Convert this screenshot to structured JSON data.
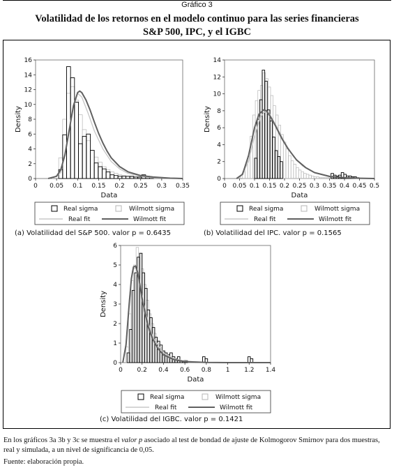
{
  "header": {
    "graphic_label": "Gráfico 3",
    "title_line1": "Volatilidad de los retornos en el modelo continuo para las series financieras",
    "title_line2": "S&P 500, IPC, y el IGBC"
  },
  "footnote": {
    "text_before": "En los gráficos 3a 3b y 3c se muestra el ",
    "italic": "valor p",
    "text_after": " asociado al test de bondad de ajuste de Kolmogorov Smirnov para dos muestras, real y simulada, a un nivel de significancia de 0,05."
  },
  "source": "Fuente: elaboración propia.",
  "colors": {
    "real": "#000000",
    "wilmott_hist": "#b5b5b5",
    "real_fit": "#c8c8c8",
    "wilmott_fit": "#606060"
  },
  "chart_data": [
    {
      "type": "histogram",
      "caption": "(a)    Volatilidad del S&P 500. valor p = 0.6435",
      "xlabel": "Data",
      "ylabel": "Density",
      "xlim": [
        0,
        0.35
      ],
      "ylim": [
        0,
        16
      ],
      "xticks": [
        "0",
        "0.05",
        "0.1",
        "0.15",
        "0.2",
        "0.25",
        "0.3",
        "0.35"
      ],
      "yticks": [
        "0",
        "2",
        "4",
        "6",
        "8",
        "10",
        "12",
        "14",
        "16"
      ],
      "legend": [
        "Real sigma",
        "Wilmott sigma",
        "Real fit",
        "Wilmott fit"
      ],
      "series": [
        {
          "name": "Real sigma",
          "bin_start": 0.055,
          "bin_width": 0.0094,
          "values": [
            1.2,
            5.9,
            15.1,
            13.6,
            10.3,
            4.7,
            5.7,
            6.0,
            3.8,
            2.1,
            1.6,
            1.3,
            0.9,
            0.5,
            0.4,
            0.3,
            0.3,
            0.3,
            0.3,
            0.2,
            0.2,
            0.5,
            0.3,
            0.2,
            0,
            0
          ]
        },
        {
          "name": "Wilmott sigma",
          "bin_start": 0.055,
          "bin_width": 0.0094,
          "values": [
            2.8,
            8.0,
            11.5,
            12.4,
            10.6,
            8.6,
            6.6,
            5.1,
            3.8,
            2.9,
            2.2,
            1.6,
            1.2,
            0.9,
            0.7,
            0.5,
            0.4,
            0.3,
            0.2,
            0.2,
            0.1,
            0.1,
            0.1,
            0.1,
            0,
            0
          ]
        },
        {
          "name": "Real fit",
          "x": [
            0.04,
            0.06,
            0.075,
            0.09,
            0.1,
            0.11,
            0.125,
            0.14,
            0.16,
            0.18,
            0.2,
            0.22,
            0.25,
            0.28,
            0.32,
            0.35
          ],
          "values": [
            0,
            0.8,
            5.0,
            10.0,
            11.5,
            11.0,
            8.8,
            6.4,
            4.0,
            2.3,
            1.3,
            0.7,
            0.3,
            0.1,
            0.05,
            0
          ]
        },
        {
          "name": "Wilmott fit",
          "x": [
            0.03,
            0.05,
            0.06,
            0.07,
            0.08,
            0.09,
            0.1,
            0.105,
            0.11,
            0.12,
            0.13,
            0.14,
            0.15,
            0.16,
            0.17,
            0.18,
            0.2,
            0.22,
            0.25,
            0.28,
            0.32,
            0.35
          ],
          "values": [
            0,
            0.3,
            1.2,
            3.2,
            6.5,
            9.8,
            11.6,
            11.8,
            11.6,
            10.6,
            9.2,
            7.6,
            6.1,
            4.8,
            3.7,
            2.8,
            1.6,
            0.9,
            0.4,
            0.2,
            0.05,
            0
          ]
        }
      ]
    },
    {
      "type": "histogram",
      "caption": "(b) Volatilidad del IPC. valor p = 0.1565",
      "xlabel": "Data",
      "ylabel": "Density",
      "xlim": [
        0,
        0.5
      ],
      "ylim": [
        0,
        14
      ],
      "xticks": [
        "0",
        "0.05",
        "0.1",
        "0.15",
        "0.2",
        "0.25",
        "0.3",
        "0.35",
        "0.4",
        "0.45",
        "0.5"
      ],
      "yticks": [
        "0",
        "2",
        "4",
        "6",
        "8",
        "10",
        "12",
        "14"
      ],
      "legend": [
        "Real sigma",
        "Wilmott sigma",
        "Real fit",
        "Wilmott fit"
      ],
      "series": [
        {
          "name": "Real sigma",
          "bin_start": 0.1,
          "bin_width": 0.0085,
          "values": [
            2.4,
            7.0,
            9.3,
            12.8,
            11.5,
            8.1,
            6.8,
            4.9,
            3.3,
            2.6,
            2.0,
            0,
            0,
            0,
            0,
            0,
            0,
            0,
            0,
            0,
            0,
            0,
            0,
            0,
            0,
            0,
            0,
            0,
            0,
            0,
            0.6,
            0.4,
            0.3,
            0.4,
            0.7,
            0.5,
            0.3,
            0.3,
            0.2,
            0.2,
            0.1
          ]
        },
        {
          "name": "Wilmott sigma",
          "bin_start": 0.06,
          "bin_width": 0.0085,
          "values": [
            0.8,
            1.6,
            2.6,
            5.0,
            7.5,
            9.2,
            10.4,
            11.0,
            12.5,
            11.8,
            10.8,
            9.8,
            8.6,
            7.5,
            6.3,
            5.2,
            4.3,
            3.5,
            2.7,
            2.1,
            1.7,
            1.3,
            1.0,
            0.8,
            0.6,
            0.5,
            0.4,
            0.3,
            0.2,
            0.2,
            0.1,
            0.1,
            0.1,
            0.1,
            0.1,
            0.1,
            0.1,
            0.1,
            0.1,
            0.1
          ]
        },
        {
          "name": "Real fit",
          "x": [
            0.05,
            0.08,
            0.1,
            0.12,
            0.135,
            0.15,
            0.17,
            0.2,
            0.23,
            0.26,
            0.3,
            0.35,
            0.4,
            0.45,
            0.5
          ],
          "values": [
            0,
            2.0,
            5.0,
            7.3,
            7.9,
            7.6,
            6.4,
            4.3,
            2.6,
            1.5,
            0.7,
            0.3,
            0.1,
            0.05,
            0
          ]
        },
        {
          "name": "Wilmott fit",
          "x": [
            0.04,
            0.06,
            0.08,
            0.1,
            0.115,
            0.13,
            0.14,
            0.155,
            0.17,
            0.19,
            0.21,
            0.24,
            0.27,
            0.3,
            0.35,
            0.4,
            0.45,
            0.5
          ],
          "values": [
            0,
            0.5,
            2.7,
            6.0,
            7.6,
            8.1,
            8.0,
            7.2,
            6.2,
            4.8,
            3.6,
            2.2,
            1.3,
            0.7,
            0.25,
            0.1,
            0.03,
            0
          ]
        }
      ]
    },
    {
      "type": "histogram",
      "caption": "(c) Volatilidad del IGBC. valor p = 0.1421",
      "xlabel": "Data",
      "ylabel": "Density",
      "xlim": [
        0,
        1.4
      ],
      "ylim": [
        0,
        6
      ],
      "xticks": [
        "0",
        "0.2",
        "0.4",
        "0.6",
        "0.8",
        "1",
        "1.2",
        "1.4"
      ],
      "yticks": [
        "0",
        "1",
        "2",
        "3",
        "4",
        "5",
        "6"
      ],
      "legend": [
        "Real sigma",
        "Wilmott sigma",
        "Real fit",
        "Wilmott fit"
      ],
      "series": [
        {
          "name": "Real sigma",
          "bin_start": 0.06,
          "bin_width": 0.0235,
          "values": [
            0.5,
            1.7,
            3.7,
            4.6,
            5.4,
            5.6,
            4.6,
            3.8,
            2.7,
            2.3,
            1.8,
            1.3,
            1.1,
            0.9,
            0.6,
            0.5,
            0.4,
            0.5,
            0.3,
            0.2,
            0.3,
            0.1,
            0.1,
            0.1,
            0,
            0,
            0,
            0,
            0,
            0,
            0.3,
            0.2,
            0,
            0,
            0,
            0,
            0,
            0,
            0,
            0,
            0,
            0,
            0,
            0,
            0,
            0,
            0,
            0,
            0.3,
            0.2
          ]
        },
        {
          "name": "Wilmott sigma",
          "bin_start": 0.05,
          "bin_width": 0.0235,
          "values": [
            0.8,
            2.5,
            4.2,
            5.0,
            5.9,
            5.6,
            4.8,
            4.0,
            3.2,
            2.5,
            2.0,
            1.5,
            1.1,
            0.8,
            0.6,
            0.5,
            0.4,
            0.3,
            0.2,
            0.2,
            0.1,
            0.1,
            0.1,
            0.1
          ]
        },
        {
          "name": "Real fit",
          "x": [
            0.02,
            0.05,
            0.08,
            0.11,
            0.14,
            0.17,
            0.2,
            0.25,
            0.3,
            0.4,
            0.5,
            0.6,
            0.8,
            1.0,
            1.4
          ],
          "values": [
            0,
            1.0,
            3.2,
            4.7,
            4.9,
            4.3,
            3.4,
            2.2,
            1.3,
            0.5,
            0.2,
            0.08,
            0.01,
            0,
            0
          ]
        },
        {
          "name": "Wilmott fit",
          "x": [
            0.02,
            0.05,
            0.08,
            0.1,
            0.12,
            0.14,
            0.16,
            0.18,
            0.2,
            0.23,
            0.26,
            0.3,
            0.35,
            0.4,
            0.5,
            0.6,
            0.8,
            1.0,
            1.4
          ],
          "values": [
            0,
            0.9,
            3.0,
            4.3,
            4.9,
            4.95,
            4.6,
            4.0,
            3.3,
            2.5,
            1.8,
            1.2,
            0.7,
            0.4,
            0.15,
            0.05,
            0.01,
            0,
            0
          ]
        }
      ]
    }
  ]
}
